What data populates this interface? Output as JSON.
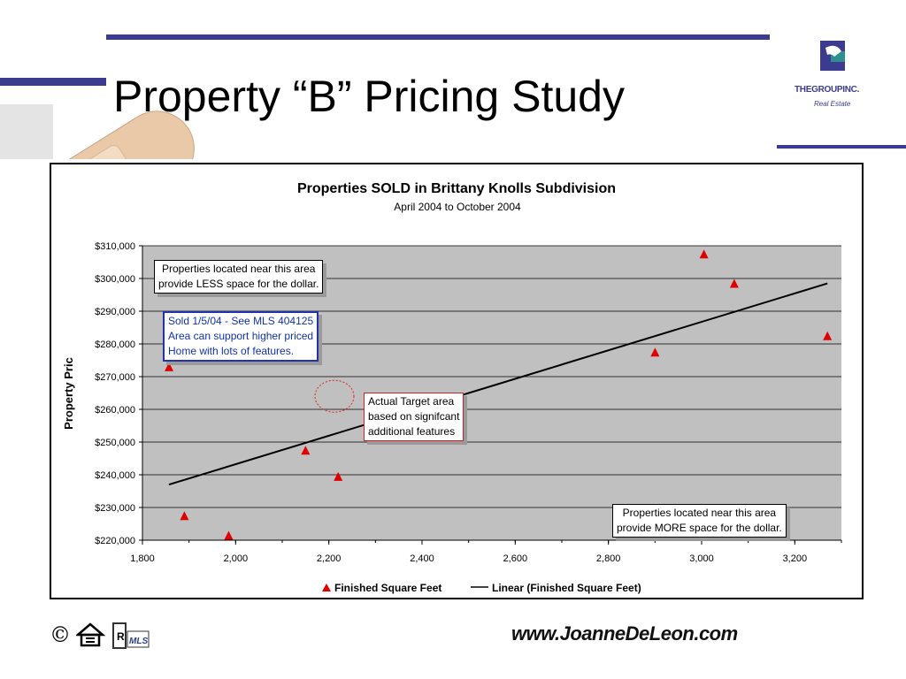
{
  "slide": {
    "title": "Property “B” Pricing Study",
    "logo_text": "THEGROUPINC.",
    "logo_sub": "Real Estate",
    "website": "www.JoanneDeLeon.com",
    "copyright_symbol": "©",
    "mls_text": "MLS",
    "colors": {
      "accent_bar": "#3b3b8f",
      "title": "#000000",
      "plot_bg": "#c0c0c0",
      "marker": "#e00000"
    }
  },
  "chart_data": {
    "type": "scatter",
    "title": "Properties SOLD in Brittany Knolls Subdivision",
    "subtitle": "April 2004 to October 2004",
    "ylabel": "Property Pric",
    "xlabel": "",
    "xlim": [
      1800,
      3300
    ],
    "ylim": [
      220000,
      310000
    ],
    "x_ticks": [
      1800,
      2000,
      2200,
      2400,
      2600,
      2800,
      3000,
      3200
    ],
    "x_tick_labels": [
      "1,800",
      "2,000",
      "2,200",
      "2,400",
      "2,600",
      "2,800",
      "3,000",
      "3,200"
    ],
    "y_ticks": [
      220000,
      230000,
      240000,
      250000,
      260000,
      270000,
      280000,
      290000,
      300000,
      310000
    ],
    "y_tick_labels": [
      "$220,000",
      "$230,000",
      "$240,000",
      "$250,000",
      "$260,000",
      "$270,000",
      "$280,000",
      "$290,000",
      "$300,000",
      "$310,000"
    ],
    "grid": "horizontal",
    "legend_position": "bottom",
    "series": [
      {
        "name": "Finished Square Feet",
        "marker": "triangle",
        "color": "#e00000",
        "points": [
          {
            "x": 1857,
            "y": 273000
          },
          {
            "x": 1890,
            "y": 227500
          },
          {
            "x": 1985,
            "y": 221500
          },
          {
            "x": 2150,
            "y": 247500
          },
          {
            "x": 2220,
            "y": 239500
          },
          {
            "x": 2900,
            "y": 277500
          },
          {
            "x": 3005,
            "y": 307500
          },
          {
            "x": 3070,
            "y": 298500
          },
          {
            "x": 3270,
            "y": 282500
          }
        ]
      },
      {
        "name": "Linear (Finished Square Feet)",
        "type": "trendline",
        "color": "#000000",
        "points": [
          {
            "x": 1857,
            "y": 237000
          },
          {
            "x": 3270,
            "y": 298500
          }
        ]
      }
    ],
    "annotations": [
      {
        "id": "less",
        "lines": [
          "Properties located near this area",
          "provide LESS space for the dollar."
        ]
      },
      {
        "id": "sold",
        "lines": [
          "Sold 1/5/04 - See MLS 404125",
          "Area can support higher priced",
          "Home with lots of features."
        ]
      },
      {
        "id": "target",
        "lines": [
          "Actual Target area",
          "based on signifcant",
          "additional features"
        ]
      },
      {
        "id": "more",
        "lines": [
          "Properties located near this area",
          "provide MORE space for the dollar."
        ]
      }
    ],
    "target_circle": {
      "x": 2212,
      "y": 264000
    }
  }
}
